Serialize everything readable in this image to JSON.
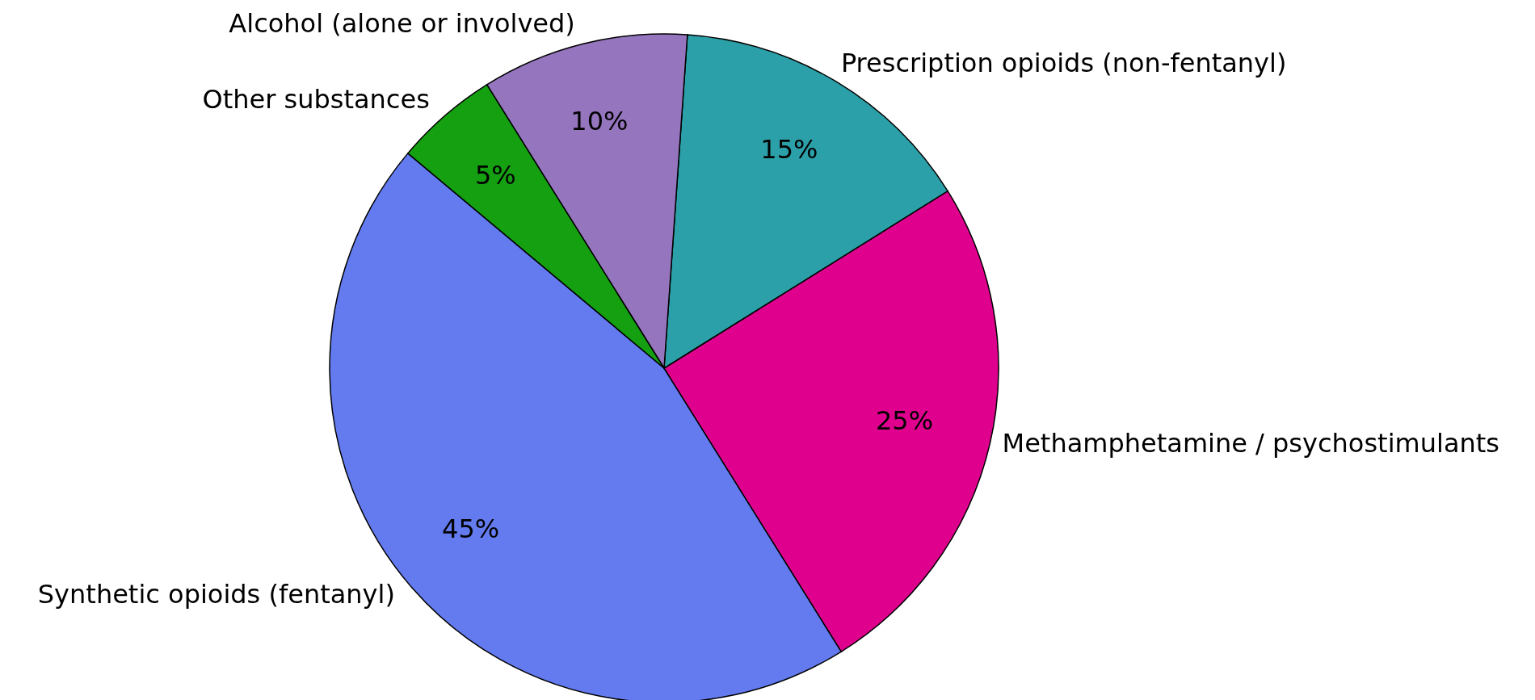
{
  "chart_data": {
    "type": "pie",
    "categories": [
      "Synthetic opioids (fentanyl)",
      "Methamphetamine / psychostimulants",
      "Prescription opioids (non-fentanyl)",
      "Alcohol (alone or involved)",
      "Other substances"
    ],
    "values": [
      45,
      25,
      15,
      10,
      5
    ],
    "colors": [
      "#637bef",
      "#e0008e",
      "#2ca0a8",
      "#9575bd",
      "#15a012"
    ],
    "value_labels": [
      "45%",
      "25%",
      "15%",
      "10%",
      "5%"
    ],
    "legend": false
  }
}
